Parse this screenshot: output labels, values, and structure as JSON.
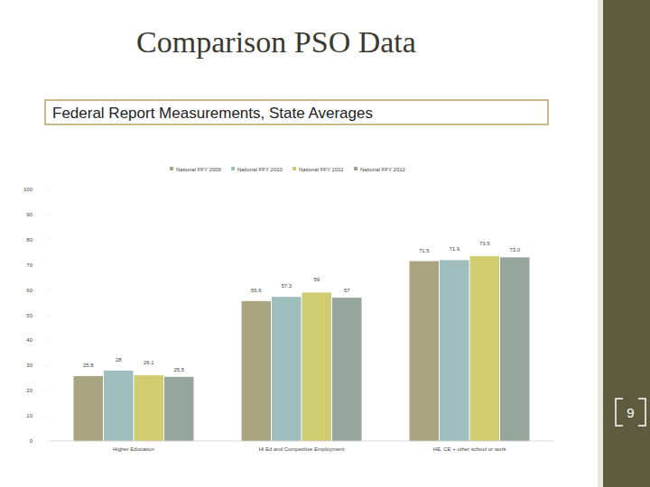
{
  "slide": {
    "title": "Comparison PSO Data",
    "page_number": "9"
  },
  "chart_data": {
    "type": "bar",
    "title": "Federal Report Measurements, State Averages",
    "categories": [
      "Higher Education",
      "Hi Ed and Competitive Employment",
      "HE, CE + other school or work"
    ],
    "series": [
      {
        "name": "National FFY 2009",
        "color": "#a9a580",
        "values": [
          25.8,
          55.6,
          71.5
        ],
        "value_labels": [
          "25.8",
          "55.6",
          "71.5"
        ]
      },
      {
        "name": "National FFY 2010",
        "color": "#9ebfbe",
        "values": [
          28,
          57.3,
          71.9
        ],
        "value_labels": [
          "28",
          "57.3",
          "71.9"
        ]
      },
      {
        "name": "National FFY 2011",
        "color": "#d0cc70",
        "values": [
          26.1,
          59,
          73.5
        ],
        "value_labels": [
          "26.1",
          "59",
          "73.5"
        ]
      },
      {
        "name": "National FFY 2012",
        "color": "#97a69d",
        "values": [
          25.5,
          57,
          73.0
        ],
        "value_labels": [
          "25.5",
          "57",
          "73.0"
        ]
      }
    ],
    "ylim": [
      0,
      100
    ],
    "yticks": [
      0,
      10,
      20,
      30,
      40,
      50,
      60,
      70,
      80,
      90,
      100
    ],
    "grid": false,
    "legend": "top",
    "data_labels": true
  }
}
